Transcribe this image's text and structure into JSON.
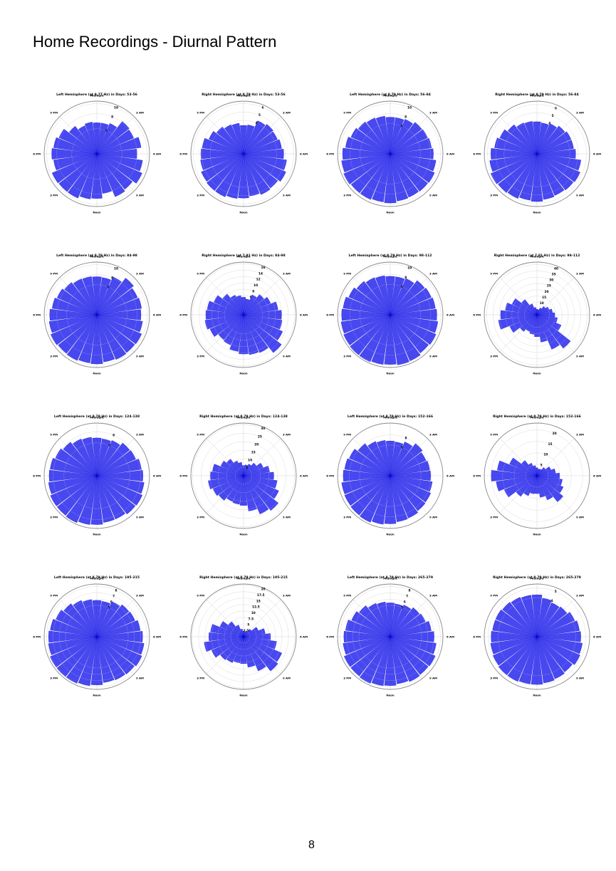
{
  "page": {
    "title": "Home Recordings - Diurnal Pattern",
    "page_number": "8"
  },
  "colors": {
    "bar": "#1a1aee",
    "bar_edge": "#0000cc",
    "grid": "#cccccc",
    "frame": "#888888"
  },
  "direction_labels": [
    "Midnight",
    "3 AM",
    "6 AM",
    "9 AM",
    "Noon",
    "3 PM",
    "6 PM",
    "9 PM"
  ],
  "chart_data": [
    {
      "type": "polar-bar",
      "title": "Left Hemisphere (at 9.77 Hz) in Days: 53-56",
      "rmax": 10.5,
      "rticks": [
        5,
        8,
        10
      ],
      "values": [
        6.2,
        6.2,
        6.6,
        8.2,
        8.0,
        8.9,
        8.0,
        9.2,
        9.8,
        9.0,
        9.3,
        8.0,
        8.9,
        9.1,
        9.6,
        9.6,
        9.7,
        8.7,
        9.0,
        8.7,
        8.2,
        7.0,
        6.1,
        6.4
      ]
    },
    {
      "type": "polar-bar",
      "title": "Right Hemisphere (at 8.79 Hz) in Days: 53-56",
      "rmax": 6.3,
      "rticks": [
        4,
        5,
        6
      ],
      "values": [
        3.4,
        3.5,
        4.3,
        4.5,
        4.4,
        4.6,
        4.8,
        5.2,
        5.5,
        5.2,
        5.3,
        5.1,
        5.3,
        5.4,
        5.6,
        5.6,
        5.5,
        5.2,
        5.1,
        5.0,
        4.5,
        4.1,
        3.8,
        3.7
      ]
    },
    {
      "type": "polar-bar",
      "title": "Left Hemisphere (at 8.79 Hz) in Days: 56-84",
      "rmax": 10.5,
      "rticks": [
        6,
        8,
        10
      ],
      "values": [
        7.3,
        7.3,
        7.5,
        8.0,
        8.1,
        8.3,
        8.6,
        9.2,
        9.6,
        9.5,
        9.4,
        9.5,
        9.8,
        9.7,
        9.9,
        9.9,
        10.1,
        9.8,
        9.5,
        9.0,
        8.5,
        8.1,
        7.8,
        7.6
      ]
    },
    {
      "type": "polar-bar",
      "title": "Right Hemisphere (at 8.79 Hz) in Days: 56-84",
      "rmax": 6.4,
      "rticks": [
        4,
        5,
        6
      ],
      "values": [
        3.9,
        3.8,
        4.0,
        4.3,
        4.5,
        4.5,
        4.7,
        5.4,
        5.7,
        5.6,
        5.5,
        5.6,
        5.8,
        5.7,
        5.9,
        6.0,
        6.1,
        5.8,
        5.6,
        5.2,
        4.9,
        4.5,
        4.1,
        4.0
      ]
    },
    {
      "type": "polar-bar",
      "title": "Left Hemisphere (at 8.79 Hz) in Days: 84-98",
      "rmax": 10.5,
      "rticks": [
        6,
        8,
        10
      ],
      "values": [
        7.6,
        7.5,
        8.2,
        9.3,
        8.8,
        9.0,
        8.8,
        9.2,
        9.7,
        9.6,
        9.7,
        9.5,
        9.8,
        9.7,
        9.9,
        9.8,
        10.0,
        9.6,
        9.4,
        9.0,
        8.6,
        8.2,
        7.8,
        7.7
      ]
    },
    {
      "type": "polar-bar",
      "title": "Right Hemisphere (at 7.81 Hz) in Days: 84-98",
      "rmax": 16.5,
      "rticks": [
        6,
        8,
        10,
        12,
        14,
        16
      ],
      "values": [
        5.5,
        5.0,
        6.8,
        8.1,
        9.2,
        10.9,
        11.9,
        12.2,
        13.3,
        15.1,
        12.9,
        12.6,
        12.3,
        11.6,
        10.3,
        10.0,
        11.4,
        12.2,
        11.8,
        11.5,
        10.1,
        8.3,
        6.7,
        6.1
      ]
    },
    {
      "type": "polar-bar",
      "title": "Left Hemisphere (at 8.79 Hz) in Days: 98-112",
      "rmax": 10.4,
      "rticks": [
        6,
        8,
        10
      ],
      "values": [
        7.6,
        7.6,
        7.8,
        8.6,
        8.8,
        9.0,
        9.2,
        9.5,
        9.8,
        9.6,
        9.9,
        10.0,
        9.8,
        9.9,
        10.1,
        10.1,
        10.0,
        9.8,
        9.6,
        9.4,
        8.9,
        8.4,
        8.0,
        7.8
      ]
    },
    {
      "type": "polar-bar",
      "title": "Right Hemisphere (at 7.81 Hz) in Days: 98-112",
      "rmax": 42,
      "rticks": [
        10,
        15,
        20,
        25,
        30,
        35,
        40
      ],
      "values": [
        4.5,
        4.2,
        6.0,
        8.5,
        10.5,
        12.5,
        14.2,
        16.5,
        21.0,
        34.0,
        30.0,
        22.0,
        17.5,
        15.8,
        14.5,
        17.0,
        23.5,
        31.0,
        29.0,
        25.5,
        21.5,
        15.5,
        9.5,
        6.0
      ]
    },
    {
      "type": "polar-bar",
      "title": "Left Hemisphere (at 8.79 Hz) in Days: 124-138",
      "rmax": 9.6,
      "rticks": [
        6,
        8
      ],
      "values": [
        6.9,
        6.8,
        7.0,
        7.6,
        7.7,
        8.2,
        8.4,
        8.7,
        9.0,
        8.9,
        8.6,
        8.6,
        8.9,
        9.0,
        9.3,
        9.2,
        9.2,
        8.9,
        8.7,
        8.6,
        8.2,
        7.8,
        7.3,
        7.1
      ]
    },
    {
      "type": "polar-bar",
      "title": "Right Hemisphere (at 8.79 Hz) in Days: 124-138",
      "rmax": 31,
      "rticks": [
        5,
        10,
        15,
        20,
        25,
        30
      ],
      "values": [
        6.0,
        6.5,
        7.5,
        9.5,
        12.5,
        15.5,
        17.8,
        20.0,
        22.5,
        26.0,
        24.5,
        21.0,
        17.5,
        17.0,
        16.5,
        18.5,
        19.5,
        21.0,
        19.5,
        18.5,
        14.5,
        12.5,
        9.5,
        8.0
      ]
    },
    {
      "type": "polar-bar",
      "title": "Left Hemisphere (at 8.79 Hz) in Days: 152-166",
      "rmax": 10.3,
      "rticks": [
        6,
        8
      ],
      "values": [
        6.8,
        6.7,
        7.2,
        8.0,
        7.6,
        7.8,
        7.9,
        8.3,
        8.6,
        8.7,
        9.0,
        9.1,
        9.4,
        9.6,
        9.9,
        9.8,
        9.7,
        9.6,
        9.2,
        9.0,
        8.7,
        8.0,
        7.3,
        7.0
      ]
    },
    {
      "type": "polar-bar",
      "title": "Right Hemisphere (at 8.79 Hz) in Days: 152-166",
      "rmax": 23,
      "rticks": [
        5,
        10,
        15,
        20
      ],
      "values": [
        3.5,
        3.0,
        3.2,
        4.6,
        6.6,
        8.2,
        9.9,
        11.2,
        12.5,
        14.5,
        11.5,
        9.5,
        7.8,
        8.0,
        9.5,
        11.5,
        15.5,
        18.0,
        20.0,
        17.5,
        13.0,
        8.5,
        6.0,
        4.5
      ]
    },
    {
      "type": "polar-bar",
      "title": "Left Hemisphere (at 8.79 Hz) in Days: 195-215",
      "rmax": 8.4,
      "rticks": [
        5,
        6,
        7,
        8
      ],
      "values": [
        5.8,
        5.7,
        6.1,
        6.5,
        6.6,
        7.0,
        7.3,
        7.6,
        7.8,
        7.6,
        7.5,
        7.4,
        7.7,
        7.9,
        8.1,
        8.1,
        8.1,
        7.8,
        7.7,
        7.5,
        7.1,
        6.7,
        6.3,
        6.0
      ]
    },
    {
      "type": "polar-bar",
      "title": "Right Hemisphere (at 8.79 Hz) in Days: 195-215",
      "rmax": 20.5,
      "rticks": [
        2.5,
        5.0,
        7.5,
        10.0,
        12.5,
        15.0,
        17.5,
        20.0
      ],
      "values": [
        2.2,
        2.0,
        2.5,
        3.8,
        6.2,
        8.5,
        10.5,
        13.0,
        16.2,
        17.0,
        14.5,
        12.0,
        10.5,
        10.3,
        11.0,
        11.5,
        13.5,
        15.5,
        13.5,
        13.0,
        10.0,
        7.5,
        5.0,
        3.0
      ]
    },
    {
      "type": "polar-bar",
      "title": "Left Hemisphere (at 8.79 Hz) in Days: 265-279",
      "rmax": 8.4,
      "rticks": [
        5,
        6,
        7,
        8
      ],
      "values": [
        5.4,
        5.3,
        5.5,
        5.9,
        6.1,
        6.6,
        7.0,
        7.4,
        7.8,
        7.7,
        7.8,
        7.6,
        7.8,
        7.9,
        8.1,
        8.0,
        8.0,
        7.6,
        7.4,
        7.2,
        6.7,
        6.3,
        5.8,
        5.6
      ]
    },
    {
      "type": "polar-bar",
      "title": "Right Hemisphere (at 8.79 Hz) in Days: 265-279",
      "rmax": 5.4,
      "rticks": [
        4,
        5
      ],
      "values": [
        4.3,
        4.0,
        3.8,
        3.9,
        4.2,
        4.4,
        4.5,
        4.7,
        4.8,
        4.6,
        4.7,
        4.8,
        4.9,
        4.9,
        5.0,
        5.0,
        4.9,
        4.8,
        4.7,
        4.6,
        4.6,
        4.5,
        4.4,
        4.3
      ]
    }
  ]
}
